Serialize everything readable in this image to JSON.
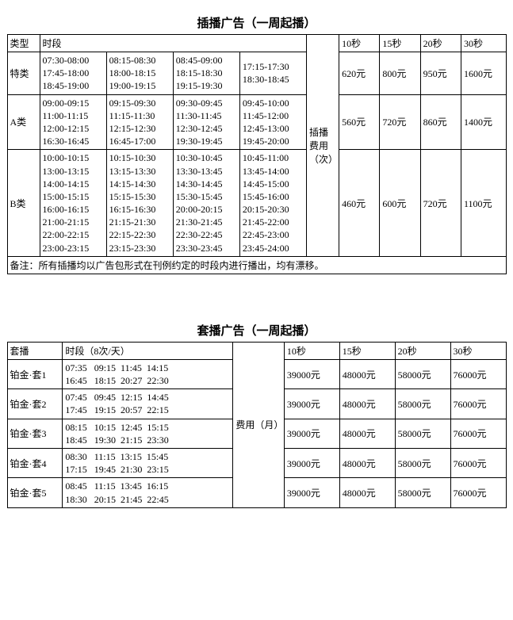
{
  "table1": {
    "title": "插播广告（一周起播）",
    "headers": {
      "type": "类型",
      "slots": "时段",
      "feeLabel": "插播费用（次）",
      "d10": "10秒",
      "d15": "15秒",
      "d20": "20秒",
      "d30": "30秒"
    },
    "rows": [
      {
        "type": "特类",
        "c1": "07:30-08:00\n17:45-18:00\n18:45-19:00",
        "c2": "08:15-08:30\n18:00-18:15\n19:00-19:15",
        "c3": "08:45-09:00\n18:15-18:30\n19:15-19:30",
        "c4": "17:15-17:30\n18:30-18:45",
        "p10": "620元",
        "p15": "800元",
        "p20": "950元",
        "p30": "1600元"
      },
      {
        "type": "A类",
        "c1": "09:00-09:15\n11:00-11:15\n12:00-12:15\n16:30-16:45",
        "c2": "09:15-09:30\n11:15-11:30\n12:15-12:30\n16:45-17:00",
        "c3": "09:30-09:45\n11:30-11:45\n12:30-12:45\n19:30-19:45",
        "c4": "09:45-10:00\n11:45-12:00\n12:45-13:00\n19:45-20:00",
        "p10": "560元",
        "p15": "720元",
        "p20": "860元",
        "p30": "1400元"
      },
      {
        "type": "B类",
        "c1": "10:00-10:15\n13:00-13:15\n14:00-14:15\n15:00-15:15\n16:00-16:15\n21:00-21:15\n22:00-22:15\n23:00-23:15",
        "c2": "10:15-10:30\n13:15-13:30\n14:15-14:30\n15:15-15:30\n16:15-16:30\n21:15-21:30\n22:15-22:30\n23:15-23:30",
        "c3": "10:30-10:45\n13:30-13:45\n14:30-14:45\n15:30-15:45\n20:00-20:15\n21:30-21:45\n22:30-22:45\n23:30-23:45",
        "c4": "10:45-11:00\n13:45-14:00\n14:45-15:00\n15:45-16:00\n20:15-20:30\n21:45-22:00\n22:45-23:00\n23:45-24:00",
        "p10": "460元",
        "p15": "600元",
        "p20": "720元",
        "p30": "1100元"
      }
    ],
    "note": "备注：所有插播均以广告包形式在刊例约定的时段内进行播出，均有漂移。"
  },
  "table2": {
    "title": "套播广告（一周起播）",
    "headers": {
      "pkg": "套播",
      "slots": "时段（8次/天）",
      "feeLabel": "费用（月）",
      "d10": "10秒",
      "d15": "15秒",
      "d20": "20秒",
      "d30": "30秒"
    },
    "rows": [
      {
        "pkg": "铂金·套1",
        "slots": "07:35   09:15  11:45  14:15\n16:45   18:15  20:27  22:30",
        "p10": "39000元",
        "p15": "48000元",
        "p20": "58000元",
        "p30": "76000元"
      },
      {
        "pkg": "铂金·套2",
        "slots": "07:45   09:45  12:15  14:45\n17:45   19:15  20:57  22:15",
        "p10": "39000元",
        "p15": "48000元",
        "p20": "58000元",
        "p30": "76000元"
      },
      {
        "pkg": "铂金·套3",
        "slots": "08:15   10:15  12:45  15:15\n18:45   19:30  21:15  23:30",
        "p10": "39000元",
        "p15": "48000元",
        "p20": "58000元",
        "p30": "76000元"
      },
      {
        "pkg": "铂金·套4",
        "slots": "08:30   11:15  13:15  15:45\n17:15   19:45  21:30  23:15",
        "p10": "39000元",
        "p15": "48000元",
        "p20": "58000元",
        "p30": "76000元"
      },
      {
        "pkg": "铂金·套5",
        "slots": "08:45   11:15  13:45  16:15\n18:30   20:15  21:45  22:45",
        "p10": "39000元",
        "p15": "48000元",
        "p20": "58000元",
        "p30": "76000元"
      }
    ]
  }
}
